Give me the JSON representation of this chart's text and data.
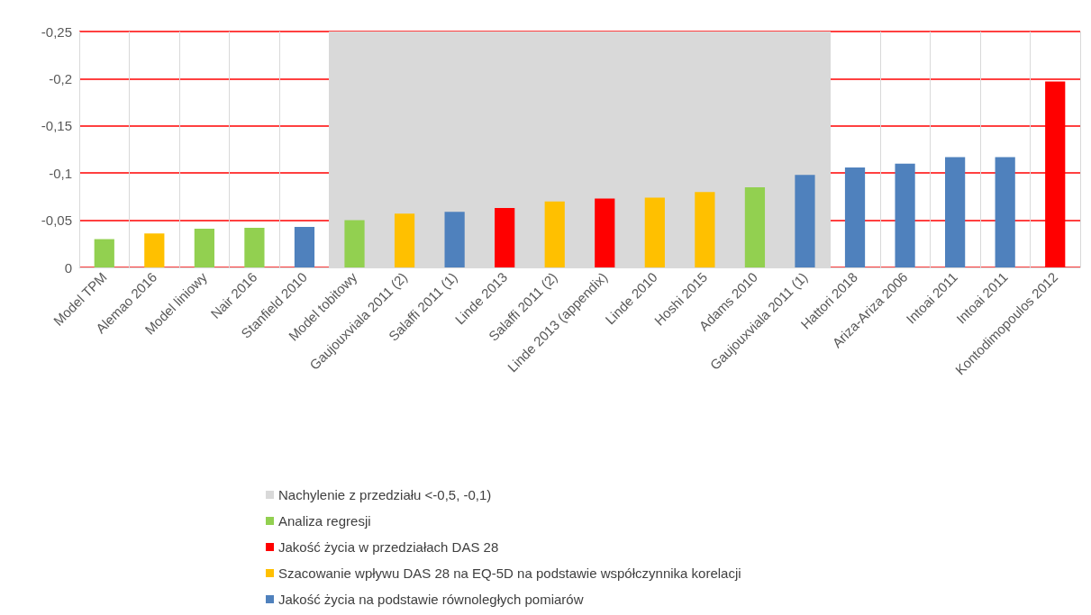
{
  "chart_data": {
    "type": "bar",
    "stacked": true,
    "categories": [
      "Model TPM",
      "Alemao 2016",
      "Model liniowy",
      "Nair 2016",
      "Stanfield 2010",
      "Model tobitowy",
      "Gaujouxviala 2011 (2)",
      "Salaffi 2011 (1)",
      "Linde 2013",
      "Salaffi 2011 (2)",
      "Linde 2013 (appendix)",
      "Linde 2010",
      "Hoshi 2015",
      "Adams 2010",
      "Gaujouxviala 2011 (1)",
      "Hattori 2018",
      "Ariza-Ariza 2006",
      "Intoai 2011",
      "Intoai 2011",
      "Kontodimopoulos 2012"
    ],
    "series": [
      {
        "name": "Analiza regresji",
        "color": "#92d050",
        "values": [
          -0.03,
          null,
          -0.041,
          -0.042,
          null,
          -0.05,
          null,
          null,
          null,
          null,
          null,
          null,
          null,
          -0.085,
          null,
          null,
          null,
          null,
          null,
          null
        ]
      },
      {
        "name": "Jakość życia w przedziałach DAS 28",
        "color": "#ff0000",
        "values": [
          null,
          null,
          null,
          null,
          null,
          null,
          null,
          null,
          -0.063,
          null,
          -0.073,
          null,
          null,
          null,
          null,
          null,
          null,
          null,
          null,
          -0.197
        ]
      },
      {
        "name": "Szacowanie wpływu DAS 28 na EQ-5D na podstawie współczynnika korelacji",
        "color": "#ffc000",
        "values": [
          null,
          -0.036,
          null,
          null,
          null,
          null,
          -0.057,
          null,
          null,
          -0.07,
          null,
          -0.074,
          -0.08,
          null,
          null,
          null,
          null,
          null,
          null,
          null
        ]
      },
      {
        "name": "Jakość życia na podstawie równoległych pomiarów",
        "color": "#4f81bd",
        "values": [
          null,
          null,
          null,
          null,
          -0.043,
          null,
          null,
          -0.059,
          null,
          null,
          null,
          null,
          null,
          null,
          -0.098,
          -0.106,
          -0.11,
          -0.117,
          -0.117,
          null
        ]
      }
    ],
    "bands": [
      {
        "axis": "x",
        "from": "Model tobitowy",
        "to": "Gaujouxviala 2011 (1)",
        "label": "Nachylenie z przedziału <-0,5, -0,1)",
        "color": "#d9d9d9"
      }
    ],
    "ylim": [
      0,
      -0.25
    ],
    "yticks": [
      {
        "value": 0,
        "label": "0"
      },
      {
        "value": -0.05,
        "label": "-0,05"
      },
      {
        "value": -0.1,
        "label": "-0,1"
      },
      {
        "value": -0.15,
        "label": "-0,15"
      },
      {
        "value": -0.2,
        "label": "-0,2"
      },
      {
        "value": -0.25,
        "label": "-0,25"
      }
    ],
    "grid": true,
    "legend": "bottom"
  }
}
